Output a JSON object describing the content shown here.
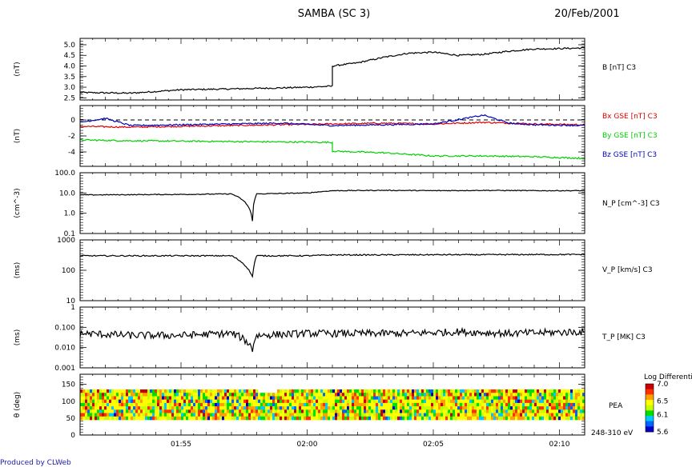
{
  "header": {
    "title": "SAMBA (SC 3)",
    "date": "20/Feb/2001"
  },
  "footer": {
    "credit": "Produced by CLWeb"
  },
  "chart_data": [
    {
      "type": "line",
      "panel": "magnetic-field-magnitude",
      "ylabel": "(nT)",
      "yticks": [
        "2.5",
        "3.0",
        "3.5",
        "4.0",
        "4.5",
        "5.0"
      ],
      "ylim": [
        2.4,
        5.3
      ],
      "series": [
        {
          "name": "B [nT] C3",
          "color": "#000000",
          "x": [
            "01:51",
            "01:53",
            "01:55",
            "01:57",
            "01:59",
            "02:00",
            "02:01",
            "02:01",
            "02:02",
            "02:03",
            "02:04",
            "02:05",
            "02:06",
            "02:07",
            "02:08",
            "02:09",
            "02:10",
            "02:11"
          ],
          "values": [
            2.75,
            2.72,
            2.88,
            2.92,
            2.97,
            3.0,
            3.05,
            4.0,
            4.15,
            4.4,
            4.6,
            4.65,
            4.5,
            4.55,
            4.7,
            4.8,
            4.82,
            4.85
          ]
        }
      ]
    },
    {
      "type": "line",
      "panel": "magnetic-field-components",
      "ylabel": "(nT)",
      "yticks": [
        "-4",
        "-2",
        "0"
      ],
      "ylim": [
        -5.8,
        1.8
      ],
      "reference_line": 0,
      "series": [
        {
          "name": "Bx GSE [nT] C3",
          "color": "#e00000",
          "x": [
            "01:51",
            "01:53",
            "01:55",
            "01:57",
            "01:59",
            "02:01",
            "02:03",
            "02:05",
            "02:07",
            "02:09",
            "02:11"
          ],
          "values": [
            -0.8,
            -0.9,
            -0.8,
            -0.7,
            -0.6,
            -0.5,
            -0.4,
            -0.5,
            -0.3,
            -0.5,
            -0.6
          ]
        },
        {
          "name": "By GSE [nT] C3",
          "color": "#00d000",
          "x": [
            "01:51",
            "01:53",
            "01:55",
            "01:57",
            "01:59",
            "02:01",
            "02:01",
            "02:03",
            "02:05",
            "02:07",
            "02:09",
            "02:11"
          ],
          "values": [
            -2.5,
            -2.6,
            -2.65,
            -2.7,
            -2.75,
            -2.8,
            -3.9,
            -4.1,
            -4.5,
            -4.5,
            -4.6,
            -4.8
          ]
        },
        {
          "name": "Bz GSE [nT] C3",
          "color": "#0000c0",
          "x": [
            "01:51",
            "01:52",
            "01:53",
            "01:55",
            "01:57",
            "01:59",
            "02:01",
            "02:03",
            "02:05",
            "02:07",
            "02:08",
            "02:09",
            "02:11"
          ],
          "values": [
            -0.3,
            0.2,
            -0.7,
            -0.6,
            -0.5,
            -0.4,
            -0.7,
            -0.6,
            -0.5,
            0.6,
            -0.4,
            -0.6,
            -0.7
          ]
        }
      ]
    },
    {
      "type": "line",
      "panel": "proton-density",
      "ylabel": "(cm^-3)",
      "yticks": [
        "0.1",
        "1.0",
        "10.0",
        "100.0"
      ],
      "scale": "log",
      "ylim": [
        0.1,
        100
      ],
      "series": [
        {
          "name": "N_P [cm^-3] C3",
          "color": "#000000",
          "x": [
            "01:51",
            "01:55",
            "01:57",
            "01:57:50",
            "01:58",
            "02:00",
            "02:01",
            "02:03",
            "02:05",
            "02:07",
            "02:09",
            "02:11"
          ],
          "values": [
            8.0,
            8.5,
            9.0,
            0.4,
            9.0,
            10.0,
            13.0,
            13.5,
            13.0,
            13.5,
            13.0,
            13.0
          ]
        }
      ]
    },
    {
      "type": "line",
      "panel": "proton-velocity",
      "ylabel": "(ms)",
      "yticks": [
        "10",
        "100",
        "1000"
      ],
      "scale": "log",
      "ylim": [
        10,
        1000
      ],
      "series": [
        {
          "name": "V_P [km/s] C3",
          "color": "#000000",
          "x": [
            "01:51",
            "01:55",
            "01:57",
            "01:57:50",
            "01:58",
            "02:00",
            "02:01",
            "02:03",
            "02:05",
            "02:07",
            "02:09",
            "02:11"
          ],
          "values": [
            300,
            300,
            300,
            60,
            300,
            300,
            320,
            320,
            325,
            325,
            330,
            330
          ]
        }
      ]
    },
    {
      "type": "line",
      "panel": "proton-temperature",
      "ylabel": "(ms)",
      "yticks": [
        "0.001",
        "0.010",
        "0.100",
        "1"
      ],
      "scale": "log",
      "ylim": [
        0.001,
        1
      ],
      "series": [
        {
          "name": "T_P [MK] C3",
          "color": "#000000",
          "x": [
            "01:51",
            "01:53",
            "01:55",
            "01:57",
            "01:57:50",
            "01:58",
            "02:00",
            "02:02",
            "02:04",
            "02:06",
            "02:08",
            "02:11"
          ],
          "values": [
            0.05,
            0.04,
            0.04,
            0.05,
            0.008,
            0.04,
            0.05,
            0.05,
            0.05,
            0.06,
            0.05,
            0.06
          ]
        }
      ]
    },
    {
      "type": "heatmap",
      "panel": "pitch-angle-distribution",
      "ylabel": "θ (deg)",
      "yticks": [
        "0",
        "50",
        "100",
        "150"
      ],
      "ylim": [
        0,
        180
      ],
      "theta_range_deg": [
        45,
        135
      ],
      "energy_label": "248-310 eV",
      "channel_label": "PEA",
      "colorbar_title": "Log Differenti",
      "colorbar_ticks": [
        "7.0",
        "6.5",
        "6.1",
        "5.6"
      ],
      "colorbar_range": [
        5.6,
        7.0
      ],
      "colormap": [
        "#0000c8",
        "#0064ff",
        "#00c8ff",
        "#00e000",
        "#c8ff00",
        "#ffff00",
        "#ffa000",
        "#ff3000",
        "#c80000"
      ]
    }
  ],
  "x_axis": {
    "tick_labels": [
      "01:55",
      "02:00",
      "02:05",
      "02:10"
    ],
    "range": [
      "01:51",
      "02:11"
    ]
  }
}
